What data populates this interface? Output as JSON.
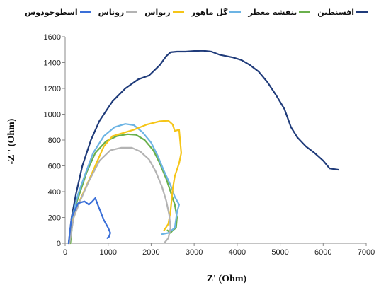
{
  "chart_data": {
    "type": "line",
    "title": "",
    "xlabel": "Z' (Ohm)",
    "ylabel": "-Z'' (Ohm)",
    "xlim": [
      0,
      7000
    ],
    "ylim": [
      0,
      1600
    ],
    "xticks": [
      0,
      1000,
      2000,
      3000,
      4000,
      5000,
      6000,
      7000
    ],
    "yticks": [
      0,
      200,
      400,
      600,
      800,
      1000,
      1200,
      1400,
      1600
    ],
    "grid": false,
    "legend_position": "top",
    "series": [
      {
        "name": "افسنطین",
        "color": "#1f3b7a",
        "points": [
          [
            80,
            0
          ],
          [
            150,
            200
          ],
          [
            250,
            380
          ],
          [
            400,
            600
          ],
          [
            600,
            800
          ],
          [
            800,
            950
          ],
          [
            1100,
            1100
          ],
          [
            1400,
            1200
          ],
          [
            1700,
            1270
          ],
          [
            1950,
            1300
          ],
          [
            2200,
            1380
          ],
          [
            2350,
            1450
          ],
          [
            2450,
            1480
          ],
          [
            2600,
            1485
          ],
          [
            2800,
            1485
          ],
          [
            3000,
            1490
          ],
          [
            3200,
            1492
          ],
          [
            3400,
            1485
          ],
          [
            3600,
            1460
          ],
          [
            3900,
            1440
          ],
          [
            4100,
            1420
          ],
          [
            4300,
            1380
          ],
          [
            4500,
            1330
          ],
          [
            4700,
            1250
          ],
          [
            4900,
            1150
          ],
          [
            5100,
            1040
          ],
          [
            5250,
            900
          ],
          [
            5400,
            820
          ],
          [
            5600,
            750
          ],
          [
            5800,
            700
          ],
          [
            6000,
            640
          ],
          [
            6150,
            580
          ],
          [
            6350,
            570
          ]
        ]
      },
      {
        "name": "بنفشه معطر",
        "color": "#6ab04c",
        "points": [
          [
            120,
            0
          ],
          [
            200,
            250
          ],
          [
            350,
            400
          ],
          [
            500,
            550
          ],
          [
            700,
            700
          ],
          [
            950,
            790
          ],
          [
            1200,
            830
          ],
          [
            1450,
            845
          ],
          [
            1650,
            840
          ],
          [
            1850,
            800
          ],
          [
            2050,
            720
          ],
          [
            2200,
            620
          ],
          [
            2350,
            500
          ],
          [
            2450,
            400
          ],
          [
            2550,
            300
          ],
          [
            2600,
            200
          ],
          [
            2580,
            120
          ],
          [
            2500,
            100
          ],
          [
            2450,
            80
          ],
          [
            2380,
            100
          ]
        ]
      },
      {
        "name": "گل ماهور",
        "color": "#6cb4e4",
        "points": [
          [
            100,
            0
          ],
          [
            180,
            220
          ],
          [
            300,
            380
          ],
          [
            450,
            520
          ],
          [
            650,
            700
          ],
          [
            900,
            830
          ],
          [
            1150,
            900
          ],
          [
            1400,
            925
          ],
          [
            1600,
            915
          ],
          [
            1800,
            860
          ],
          [
            2000,
            780
          ],
          [
            2150,
            680
          ],
          [
            2300,
            560
          ],
          [
            2450,
            450
          ],
          [
            2550,
            360
          ],
          [
            2650,
            300
          ],
          [
            2600,
            240
          ],
          [
            2550,
            120
          ],
          [
            2400,
            80
          ],
          [
            2250,
            70
          ]
        ]
      },
      {
        "name": "ریواس",
        "color": "#f5c518",
        "points": [
          [
            100,
            0
          ],
          [
            150,
            150
          ],
          [
            300,
            300
          ],
          [
            500,
            450
          ],
          [
            700,
            600
          ],
          [
            900,
            750
          ],
          [
            1100,
            830
          ],
          [
            1400,
            860
          ],
          [
            1600,
            880
          ],
          [
            1900,
            920
          ],
          [
            2200,
            945
          ],
          [
            2400,
            950
          ],
          [
            2500,
            920
          ],
          [
            2550,
            870
          ],
          [
            2650,
            880
          ],
          [
            2700,
            700
          ],
          [
            2650,
            620
          ],
          [
            2550,
            520
          ],
          [
            2500,
            420
          ],
          [
            2450,
            250
          ],
          [
            2400,
            150
          ],
          [
            2300,
            100
          ]
        ]
      },
      {
        "name": "روناس",
        "color": "#b3b3b3",
        "points": [
          [
            100,
            0
          ],
          [
            200,
            200
          ],
          [
            350,
            330
          ],
          [
            550,
            480
          ],
          [
            800,
            640
          ],
          [
            1050,
            720
          ],
          [
            1300,
            740
          ],
          [
            1550,
            740
          ],
          [
            1750,
            710
          ],
          [
            1950,
            650
          ],
          [
            2100,
            560
          ],
          [
            2250,
            440
          ],
          [
            2350,
            330
          ],
          [
            2420,
            220
          ],
          [
            2450,
            120
          ],
          [
            2400,
            40
          ],
          [
            2350,
            20
          ],
          [
            2300,
            0
          ]
        ]
      },
      {
        "name": "اسطوخودوس",
        "color": "#3a6fd8",
        "points": [
          [
            80,
            0
          ],
          [
            150,
            200
          ],
          [
            300,
            310
          ],
          [
            450,
            325
          ],
          [
            550,
            300
          ],
          [
            620,
            320
          ],
          [
            700,
            350
          ],
          [
            780,
            280
          ],
          [
            900,
            180
          ],
          [
            1000,
            120
          ],
          [
            1050,
            80
          ],
          [
            1020,
            50
          ],
          [
            980,
            40
          ]
        ]
      }
    ]
  }
}
